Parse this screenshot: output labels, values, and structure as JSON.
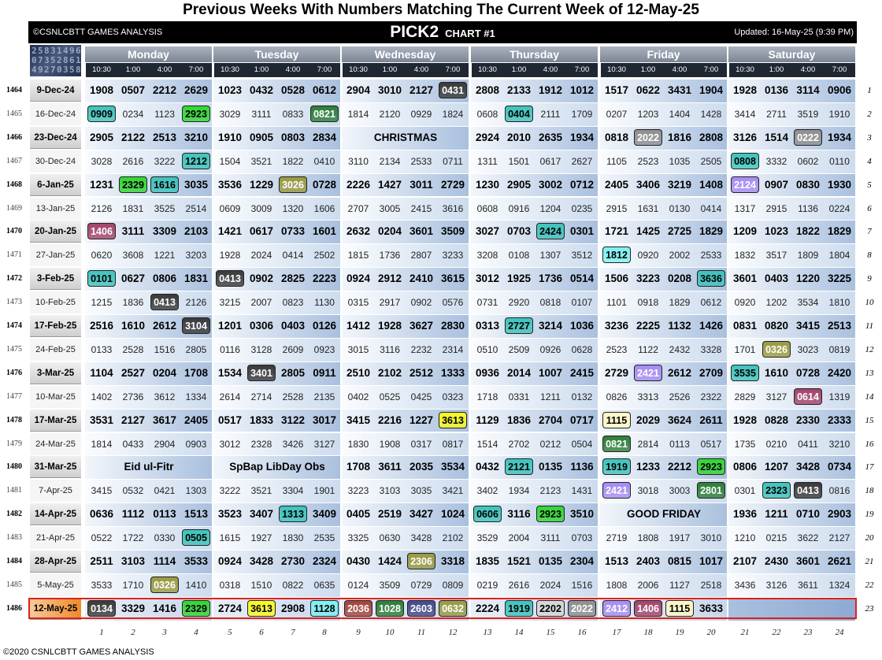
{
  "title": "Previous Weeks With Numbers Matching The Current Week of 12-May-25",
  "banner": {
    "copyright": "©CSNLCBTT GAMES ANALYSIS",
    "chart_title": "PICK2",
    "chart_sub": "CHART #1",
    "updated": "Updated: 16-May-25 (9:39 PM)"
  },
  "logo_text": [
    "2",
    "5",
    "8",
    "3",
    "1",
    "4",
    "9",
    "6",
    "0",
    "7",
    "3",
    "5",
    "2",
    "8",
    "6",
    "1",
    "4",
    "9",
    "2",
    "7",
    "0",
    "3",
    "5",
    "8"
  ],
  "days": [
    "Monday",
    "Tuesday",
    "Wednesday",
    "Thursday",
    "Friday",
    "Saturday"
  ],
  "times": [
    "10:30",
    "1:00",
    "4:00",
    "7:00"
  ],
  "column_numbers": [
    "1",
    "2",
    "3",
    "4",
    "5",
    "6",
    "7",
    "8",
    "9",
    "10",
    "11",
    "12",
    "13",
    "14",
    "15",
    "16",
    "17",
    "18",
    "19",
    "20",
    "21",
    "22",
    "23",
    "24"
  ],
  "colors": {
    "teal": "#3fc3bc",
    "green": "#33d633",
    "darkgreen": "#2e7d3a",
    "olive": "#9a9a42",
    "gray": "#8f8f8f",
    "black": "#3a3a3a",
    "purple": "#a78cf2",
    "maroon": "#a5446b",
    "cream": "#fdf7c5",
    "yellow": "#f8f824",
    "brownred": "#a4443c",
    "navy": "#444a8a",
    "cyan": "#7ff0f0",
    "silver": "#d6d6d6"
  },
  "rows": [
    {
      "num": "1464",
      "date": "9-Dec-24",
      "right": "1",
      "cells": [
        "1908",
        "0507",
        "2212",
        "2629",
        "1023",
        "0432",
        "0528",
        "0612",
        "2904",
        "3010",
        "2127",
        "0431",
        "2808",
        "2133",
        "1912",
        "1012",
        "1517",
        "0622",
        "3431",
        "1904",
        "1928",
        "0136",
        "3114",
        "0906"
      ],
      "hl": {
        "11": "black"
      }
    },
    {
      "num": "1465",
      "date": "16-Dec-24",
      "right": "2",
      "cells": [
        "0909",
        "0234",
        "1123",
        "2923",
        "3029",
        "3111",
        "0833",
        "0821",
        "1814",
        "2120",
        "0929",
        "1824",
        "0608",
        "0404",
        "2111",
        "1709",
        "0207",
        "1203",
        "1404",
        "1428",
        "3414",
        "2711",
        "3519",
        "1910"
      ],
      "hl": {
        "0": "teal",
        "3": "green",
        "7": "darkgreen",
        "13": "teal"
      }
    },
    {
      "num": "1466",
      "date": "23-Dec-24",
      "right": "3",
      "cells": [
        "2905",
        "2122",
        "2513",
        "3210",
        "1910",
        "0905",
        "0803",
        "2834",
        "",
        "",
        "",
        "",
        "2924",
        "2010",
        "2635",
        "1934",
        "0818",
        "2022",
        "1816",
        "2808",
        "3126",
        "1514",
        "0222",
        "1934"
      ],
      "hl": {
        "17": "gray",
        "22": "gray"
      },
      "note": {
        "start": 8,
        "span": 4,
        "text": "CHRISTMAS"
      }
    },
    {
      "num": "1467",
      "date": "30-Dec-24",
      "right": "4",
      "cells": [
        "3028",
        "2616",
        "3222",
        "1212",
        "1504",
        "3521",
        "1822",
        "0410",
        "3110",
        "2134",
        "2533",
        "0711",
        "1311",
        "1501",
        "0617",
        "2627",
        "1105",
        "2523",
        "1035",
        "2505",
        "0808",
        "3332",
        "0602",
        "0110"
      ],
      "hl": {
        "3": "teal",
        "20": "teal"
      }
    },
    {
      "num": "1468",
      "date": "6-Jan-25",
      "right": "5",
      "cells": [
        "1231",
        "2329",
        "1616",
        "3035",
        "3536",
        "1229",
        "3026",
        "0728",
        "2226",
        "1427",
        "3011",
        "2729",
        "1230",
        "2905",
        "3002",
        "0712",
        "2405",
        "3406",
        "3219",
        "1408",
        "2124",
        "0907",
        "0830",
        "1930"
      ],
      "hl": {
        "1": "green",
        "2": "teal",
        "6": "olive",
        "20": "purple"
      }
    },
    {
      "num": "1469",
      "date": "13-Jan-25",
      "right": "6",
      "cells": [
        "2126",
        "1831",
        "3525",
        "2514",
        "0609",
        "3009",
        "1320",
        "1606",
        "2707",
        "3005",
        "2415",
        "3616",
        "0608",
        "0916",
        "1204",
        "0235",
        "2915",
        "1631",
        "0130",
        "0414",
        "1317",
        "2915",
        "1136",
        "0224"
      ],
      "hl": {}
    },
    {
      "num": "1470",
      "date": "20-Jan-25",
      "right": "7",
      "cells": [
        "1406",
        "3111",
        "3309",
        "2103",
        "1421",
        "0617",
        "0733",
        "1601",
        "2632",
        "0204",
        "3601",
        "3509",
        "3027",
        "0703",
        "2424",
        "0301",
        "1721",
        "1425",
        "2725",
        "1829",
        "1209",
        "1023",
        "1822",
        "1829"
      ],
      "hl": {
        "0": "maroon",
        "14": "teal"
      }
    },
    {
      "num": "1471",
      "date": "27-Jan-25",
      "right": "8",
      "cells": [
        "0620",
        "3608",
        "1221",
        "3203",
        "1928",
        "2024",
        "0414",
        "2502",
        "1815",
        "1736",
        "2807",
        "3233",
        "3208",
        "0108",
        "1307",
        "3512",
        "1812",
        "0920",
        "2002",
        "2533",
        "1832",
        "3517",
        "1809",
        "1804"
      ],
      "hl": {
        "16": "cyan"
      }
    },
    {
      "num": "1472",
      "date": "3-Feb-25",
      "right": "9",
      "cells": [
        "0101",
        "0627",
        "0806",
        "1831",
        "0413",
        "0902",
        "2825",
        "2223",
        "0924",
        "2912",
        "2410",
        "3615",
        "3012",
        "1925",
        "1736",
        "0514",
        "1506",
        "3223",
        "0208",
        "3636",
        "3601",
        "0403",
        "1220",
        "3225"
      ],
      "hl": {
        "0": "teal",
        "4": "black",
        "19": "teal"
      }
    },
    {
      "num": "1473",
      "date": "10-Feb-25",
      "right": "10",
      "cells": [
        "1215",
        "1836",
        "0413",
        "2126",
        "3215",
        "2007",
        "0823",
        "1130",
        "0315",
        "2917",
        "0902",
        "0576",
        "0731",
        "2920",
        "0818",
        "0107",
        "1101",
        "0918",
        "1829",
        "0612",
        "0920",
        "1202",
        "3534",
        "1810"
      ],
      "hl": {
        "2": "black"
      }
    },
    {
      "num": "1474",
      "date": "17-Feb-25",
      "right": "11",
      "cells": [
        "2516",
        "1610",
        "2612",
        "3104",
        "1201",
        "0306",
        "0403",
        "0126",
        "1412",
        "1928",
        "3627",
        "2830",
        "0313",
        "2727",
        "3214",
        "1036",
        "3236",
        "2225",
        "1132",
        "1426",
        "0831",
        "0820",
        "3415",
        "2513"
      ],
      "hl": {
        "3": "black",
        "13": "teal"
      }
    },
    {
      "num": "1475",
      "date": "24-Feb-25",
      "right": "12",
      "cells": [
        "0133",
        "2528",
        "1516",
        "2805",
        "0116",
        "3128",
        "2609",
        "0923",
        "3015",
        "3116",
        "2232",
        "2314",
        "0510",
        "2509",
        "0926",
        "0628",
        "2523",
        "1122",
        "2432",
        "3328",
        "1701",
        "0326",
        "3023",
        "0819"
      ],
      "hl": {
        "21": "olive"
      }
    },
    {
      "num": "1476",
      "date": "3-Mar-25",
      "right": "13",
      "cells": [
        "1104",
        "2527",
        "0204",
        "1708",
        "1534",
        "3401",
        "2805",
        "0911",
        "2510",
        "2102",
        "2512",
        "1333",
        "0936",
        "2014",
        "1007",
        "2415",
        "2729",
        "2421",
        "2612",
        "2709",
        "3535",
        "1610",
        "0728",
        "2420"
      ],
      "hl": {
        "5": "black",
        "17": "purple",
        "20": "teal"
      }
    },
    {
      "num": "1477",
      "date": "10-Mar-25",
      "right": "14",
      "cells": [
        "1402",
        "2736",
        "3612",
        "1334",
        "2614",
        "2714",
        "2528",
        "2135",
        "0402",
        "0525",
        "0425",
        "0323",
        "1718",
        "0331",
        "1211",
        "0132",
        "0826",
        "3313",
        "2526",
        "2322",
        "2829",
        "3127",
        "0614",
        "1319"
      ],
      "hl": {
        "22": "maroon"
      }
    },
    {
      "num": "1478",
      "date": "17-Mar-25",
      "right": "15",
      "cells": [
        "3531",
        "2127",
        "3617",
        "2405",
        "0517",
        "1833",
        "3122",
        "3017",
        "3415",
        "2216",
        "1227",
        "3613",
        "1129",
        "1836",
        "2704",
        "0717",
        "1115",
        "2029",
        "3624",
        "2611",
        "1928",
        "0828",
        "2330",
        "2333"
      ],
      "hl": {
        "11": "yellow",
        "16": "cream"
      }
    },
    {
      "num": "1479",
      "date": "24-Mar-25",
      "right": "16",
      "cells": [
        "1814",
        "0433",
        "2904",
        "0903",
        "3012",
        "2328",
        "3426",
        "3127",
        "1830",
        "1908",
        "0317",
        "0817",
        "1514",
        "2702",
        "0212",
        "0504",
        "0821",
        "2814",
        "0113",
        "0517",
        "1735",
        "0210",
        "0411",
        "3210"
      ],
      "hl": {
        "16": "darkgreen"
      }
    },
    {
      "num": "1480",
      "date": "31-Mar-25",
      "right": "17",
      "cells": [
        "",
        "",
        "",
        "",
        "",
        "",
        "",
        "",
        "1708",
        "3611",
        "2035",
        "3534",
        "0432",
        "2121",
        "0135",
        "1136",
        "1919",
        "1233",
        "2212",
        "2923",
        "0806",
        "1207",
        "3428",
        "0734"
      ],
      "hl": {
        "13": "teal",
        "16": "teal",
        "19": "green"
      },
      "notes": [
        {
          "start": 0,
          "span": 4,
          "text": "Eid ul-Fitr"
        },
        {
          "start": 4,
          "span": 4,
          "text": "SpBap LibDay Obs"
        }
      ]
    },
    {
      "num": "1481",
      "date": "7-Apr-25",
      "right": "18",
      "cells": [
        "3415",
        "0532",
        "0421",
        "1303",
        "3222",
        "3521",
        "3304",
        "1901",
        "3223",
        "3103",
        "3035",
        "3421",
        "3402",
        "1934",
        "2123",
        "1431",
        "2421",
        "3018",
        "3003",
        "2801",
        "0301",
        "2323",
        "0413",
        "0816"
      ],
      "hl": {
        "16": "purple",
        "19": "darkgreen",
        "21": "teal",
        "22": "black"
      }
    },
    {
      "num": "1482",
      "date": "14-Apr-25",
      "right": "19",
      "cells": [
        "0636",
        "1112",
        "0113",
        "1513",
        "3523",
        "3407",
        "1313",
        "3409",
        "0405",
        "2519",
        "3427",
        "1024",
        "0606",
        "3116",
        "2923",
        "3510",
        "",
        "",
        "",
        "",
        "1936",
        "1211",
        "0710",
        "2903"
      ],
      "hl": {
        "6": "teal",
        "12": "teal",
        "14": "green"
      },
      "note": {
        "start": 16,
        "span": 4,
        "text": "GOOD FRIDAY"
      }
    },
    {
      "num": "1483",
      "date": "21-Apr-25",
      "right": "20",
      "cells": [
        "0522",
        "1722",
        "0330",
        "0505",
        "1615",
        "1927",
        "1830",
        "2535",
        "3325",
        "0630",
        "3428",
        "2102",
        "3529",
        "2004",
        "3111",
        "0703",
        "2719",
        "1808",
        "1917",
        "3010",
        "1210",
        "0215",
        "3622",
        "2127"
      ],
      "hl": {
        "3": "teal"
      }
    },
    {
      "num": "1484",
      "date": "28-Apr-25",
      "right": "21",
      "cells": [
        "2511",
        "3103",
        "1114",
        "3533",
        "0924",
        "3428",
        "2730",
        "2324",
        "0430",
        "1424",
        "2306",
        "3318",
        "1835",
        "1521",
        "0135",
        "2304",
        "1513",
        "2403",
        "0815",
        "1017",
        "2107",
        "2430",
        "3601",
        "2621"
      ],
      "hl": {
        "10": "olive"
      }
    },
    {
      "num": "1485",
      "date": "5-May-25",
      "right": "22",
      "cells": [
        "3533",
        "1710",
        "0326",
        "1410",
        "0318",
        "1510",
        "0822",
        "0635",
        "0124",
        "3509",
        "0729",
        "0809",
        "0219",
        "2616",
        "2024",
        "1516",
        "1808",
        "2006",
        "1127",
        "2518",
        "3436",
        "3126",
        "3611",
        "1324"
      ],
      "hl": {
        "2": "olive"
      }
    },
    {
      "num": "1486",
      "date": "12-May-25",
      "right": "23",
      "current": true,
      "cells": [
        "0134",
        "3329",
        "1416",
        "2329",
        "2724",
        "3613",
        "2908",
        "1128",
        "2036",
        "1028",
        "2603",
        "0632",
        "2224",
        "1919",
        "2202",
        "2022",
        "2412",
        "1406",
        "1115",
        "3633",
        "",
        "",
        "",
        ""
      ],
      "hl": {
        "0": "black",
        "3": "green",
        "5": "yellow",
        "7": "cyan",
        "8": "brownred",
        "9": "darkgreen",
        "10": "navy",
        "11": "olive",
        "13": "teal",
        "14": "silver",
        "15": "gray",
        "16": "purple",
        "17": "maroon",
        "18": "cream"
      }
    }
  ],
  "copyright_bottom": "©2020 CSNLCBTT GAMES ANALYSIS"
}
